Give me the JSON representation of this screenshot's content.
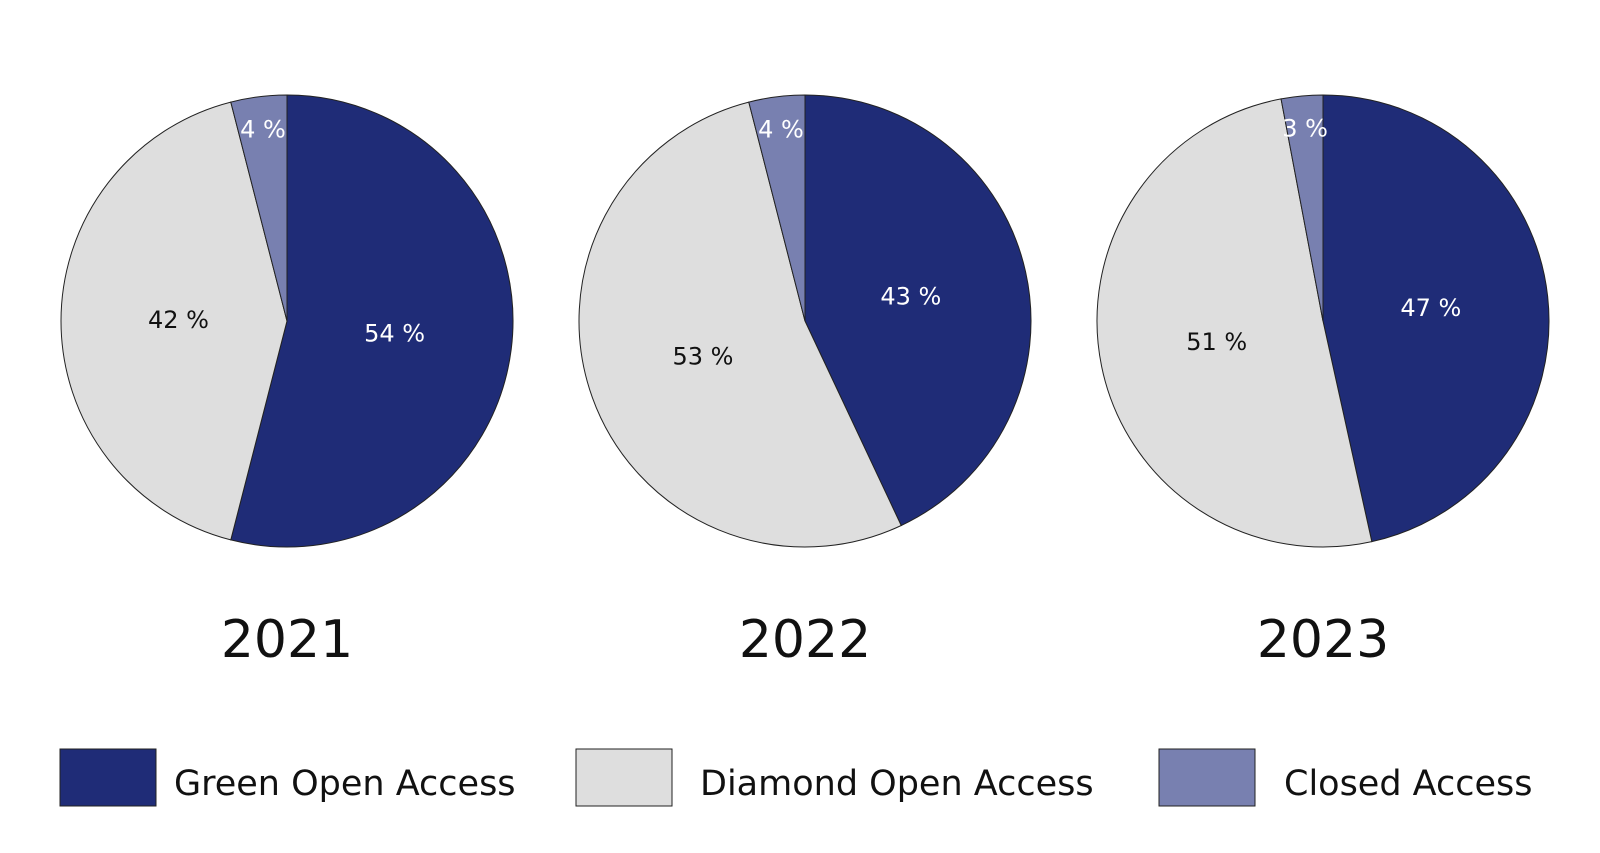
{
  "chart_data": [
    {
      "type": "pie",
      "title": "2021",
      "categories": [
        "Green Open Access",
        "Diamond Open Access",
        "Closed Access"
      ],
      "values": [
        54,
        42,
        4
      ],
      "value_labels": [
        "54 %",
        "42 %",
        "4 %"
      ],
      "colors": [
        "#1f2c77",
        "#dedede",
        "#7880b0"
      ]
    },
    {
      "type": "pie",
      "title": "2022",
      "categories": [
        "Green Open Access",
        "Diamond Open Access",
        "Closed Access"
      ],
      "values": [
        43,
        53,
        4
      ],
      "value_labels": [
        "43 %",
        "53 %",
        "4 %"
      ],
      "colors": [
        "#1f2c77",
        "#dedede",
        "#7880b0"
      ]
    },
    {
      "type": "pie",
      "title": "2023",
      "categories": [
        "Green Open Access",
        "Diamond Open Access",
        "Closed Access"
      ],
      "values": [
        47,
        51,
        3
      ],
      "value_labels": [
        "47 %",
        "51 %",
        "3 %"
      ],
      "colors": [
        "#1f2c77",
        "#dedede",
        "#7880b0"
      ]
    }
  ]
}
